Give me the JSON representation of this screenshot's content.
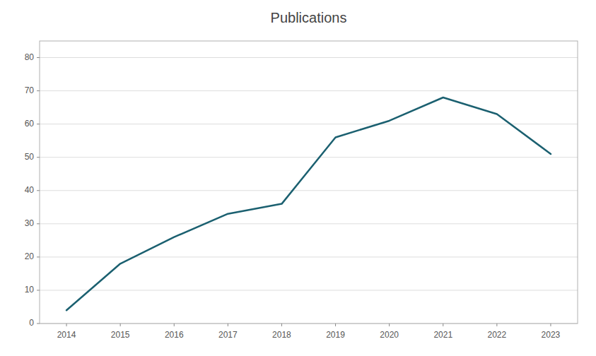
{
  "chart_data": {
    "type": "line",
    "title": "Publications",
    "x": [
      2014,
      2015,
      2016,
      2017,
      2018,
      2019,
      2020,
      2021,
      2022,
      2023
    ],
    "values": [
      4,
      18,
      26,
      33,
      36,
      56,
      61,
      68,
      63,
      51
    ],
    "color": "#1b6070",
    "xlim": [
      2013.5,
      2023.5
    ],
    "xticks": [
      2014,
      2015,
      2016,
      2017,
      2018,
      2019,
      2020,
      2021,
      2022,
      2023
    ],
    "ylim": [
      0,
      85
    ],
    "yticks": [
      0,
      10,
      20,
      30,
      40,
      50,
      60,
      70,
      80
    ],
    "grid": true
  }
}
